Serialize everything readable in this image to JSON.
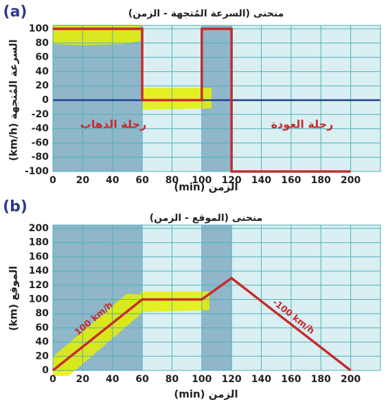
{
  "chart_data": [
    {
      "type": "line",
      "panel_label": "(a)",
      "title": "منحنى (السرعة المُتجهة - الزمن)",
      "xlabel": "الزمن (min)",
      "ylabel": "السرعة المُتجهة (km/h)",
      "x": [
        0,
        60,
        60,
        100,
        100,
        120,
        120,
        200
      ],
      "values": [
        100,
        100,
        0,
        0,
        100,
        100,
        -100,
        -100
      ],
      "color": "#c62a2f",
      "xlim": [
        0,
        220
      ],
      "ylim": [
        -100,
        100
      ],
      "xticks": [
        0,
        20,
        40,
        60,
        80,
        100,
        120,
        140,
        160,
        180,
        200
      ],
      "yticks": [
        -100,
        -80,
        -60,
        -40,
        -20,
        0,
        20,
        40,
        60,
        80,
        100
      ],
      "grid": true,
      "annotations": [
        "رحلة الذهاب",
        "رحلة العودة"
      ]
    },
    {
      "type": "line",
      "panel_label": "(b)",
      "title": "منحنى (الموقع - الزمن)",
      "xlabel": "الزمن (min)",
      "ylabel": "الموقع (km)",
      "x": [
        0,
        60,
        100,
        120,
        200
      ],
      "values": [
        0,
        100,
        100,
        130,
        0
      ],
      "color": "#c62a2f",
      "xlim": [
        0,
        220
      ],
      "ylim": [
        0,
        200
      ],
      "xticks": [
        0,
        20,
        40,
        60,
        80,
        100,
        120,
        140,
        160,
        180,
        200
      ],
      "yticks": [
        0,
        20,
        40,
        60,
        80,
        100,
        120,
        140,
        160,
        180,
        200
      ],
      "grid": true,
      "annotations": [
        "100 km/h",
        "-100 km/h"
      ]
    }
  ]
}
